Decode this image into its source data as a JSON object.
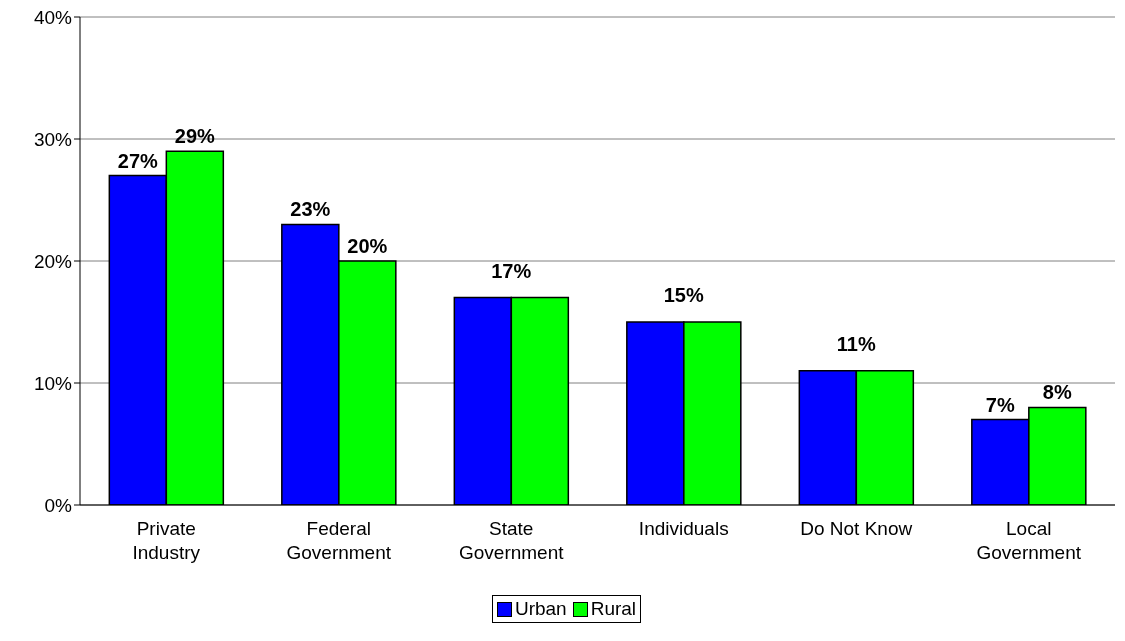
{
  "chart_data": {
    "type": "bar",
    "categories": [
      "Private Industry",
      "Federal Government",
      "State Government",
      "Individuals",
      "Do Not Know",
      "Local Government"
    ],
    "series": [
      {
        "name": "Urban",
        "color": "#0000ff",
        "values": [
          27,
          23,
          17,
          15,
          11,
          7
        ],
        "value_labels": [
          "27%",
          "23%",
          null,
          null,
          null,
          "7%"
        ]
      },
      {
        "name": "Rural",
        "color": "#00ff00",
        "values": [
          29,
          20,
          17,
          15,
          11,
          8
        ],
        "value_labels": [
          "29%",
          "20%",
          null,
          null,
          null,
          "8%"
        ]
      }
    ],
    "annotations": [
      {
        "text": "17%",
        "x": "State Government",
        "y": 17
      },
      {
        "text": "15%",
        "x": "Individuals",
        "y": 15
      },
      {
        "text": "11%",
        "x": "Do Not Know",
        "y": 11
      }
    ],
    "ylim": [
      0,
      40
    ],
    "yticks": [
      {
        "value": 0,
        "label": "0%"
      },
      {
        "value": 10,
        "label": "10%"
      },
      {
        "value": 20,
        "label": "20%"
      },
      {
        "value": 30,
        "label": "30%"
      },
      {
        "value": 40,
        "label": "40%"
      }
    ],
    "grid": "y",
    "legend": "bottom"
  }
}
